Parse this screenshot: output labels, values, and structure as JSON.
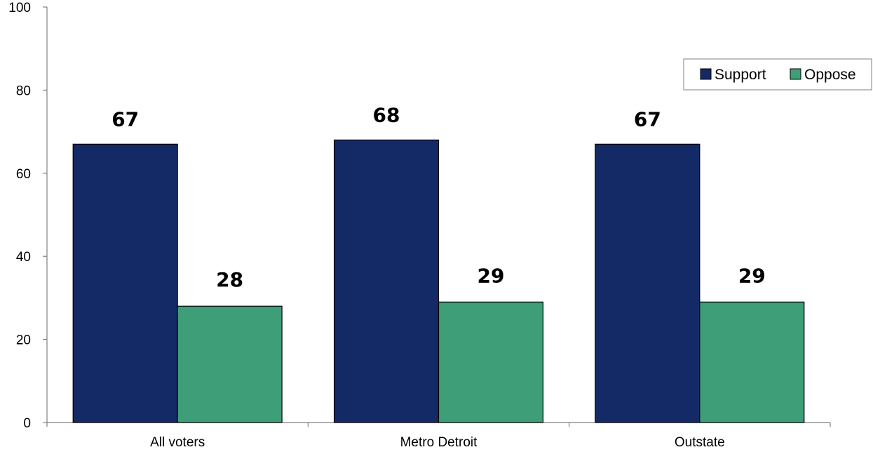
{
  "chart_data": {
    "type": "bar",
    "categories": [
      "All voters",
      "Metro Detroit",
      "Outstate"
    ],
    "series": [
      {
        "name": "Support",
        "values": [
          67,
          68,
          67
        ],
        "color": "#142a66"
      },
      {
        "name": "Oppose",
        "values": [
          28,
          29,
          29
        ],
        "color": "#3d9e78"
      }
    ],
    "ylim": [
      0,
      100
    ],
    "yticks": [
      0,
      20,
      40,
      60,
      80,
      100
    ],
    "grid": false,
    "legend_position": "top-right",
    "title": "",
    "xlabel": "",
    "ylabel": ""
  }
}
